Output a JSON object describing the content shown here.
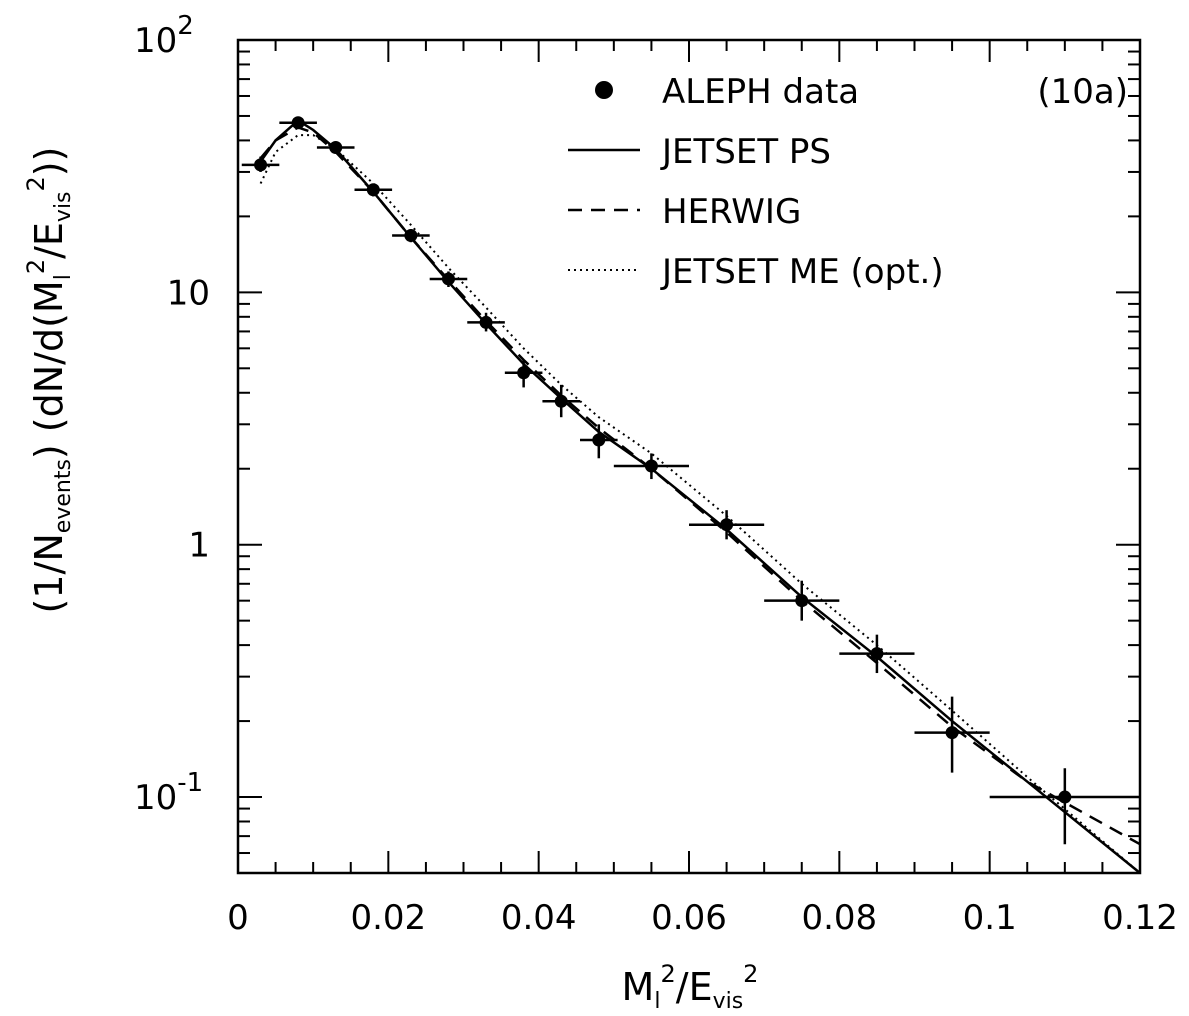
{
  "chart_data": {
    "type": "scatter",
    "title": "",
    "panel_label": "(10a)",
    "xlabel": {
      "base": "M",
      "base_sub": "l",
      "sup1": "2",
      "slash": "/",
      "base2": "E",
      "base2_sub": "vis",
      "sup2": "2"
    },
    "ylabel": {
      "part1": "(1/N",
      "part1_sub": "events",
      "part2": ") (dN/d(M",
      "part2_sub": "l",
      "part2_sup": "2",
      "part3": "/E",
      "part3_sub": "vis",
      "part3_sup": "2",
      "part4": "))"
    },
    "x_axis": {
      "min": 0,
      "max": 0.12,
      "scale": "linear",
      "ticks": [
        0,
        0.02,
        0.04,
        0.06,
        0.08,
        0.1,
        0.12
      ],
      "tick_labels": [
        "0",
        "0.02",
        "0.04",
        "0.06",
        "0.08",
        "0.1",
        "0.12"
      ]
    },
    "y_axis": {
      "min": 0.05,
      "max": 100,
      "scale": "log",
      "ticks": [
        {
          "value": 100,
          "label": "10",
          "sup": "2"
        },
        {
          "value": 10,
          "label": "10",
          "sup": ""
        },
        {
          "value": 1,
          "label": "1",
          "sup": ""
        },
        {
          "value": 0.1,
          "label": "10",
          "sup": "-1"
        }
      ]
    },
    "legend": {
      "position": "top-right",
      "entries": [
        {
          "name": "ALEPH data",
          "style": "marker"
        },
        {
          "name": "JETSET PS",
          "style": "solid"
        },
        {
          "name": "HERWIG",
          "style": "dashed"
        },
        {
          "name": "JETSET ME (opt.)",
          "style": "dotted"
        }
      ]
    },
    "series": [
      {
        "name": "ALEPH data",
        "kind": "points",
        "points": [
          {
            "x": 0.003,
            "y": 32.0,
            "xerr": 0.0025,
            "ylo": 30.0,
            "yhi": 34.5
          },
          {
            "x": 0.008,
            "y": 47.0,
            "xerr": 0.0025,
            "ylo": 45.0,
            "yhi": 49.0
          },
          {
            "x": 0.013,
            "y": 37.5,
            "xerr": 0.0025,
            "ylo": 36.0,
            "yhi": 39.0
          },
          {
            "x": 0.018,
            "y": 25.5,
            "xerr": 0.0025,
            "ylo": 24.0,
            "yhi": 27.0
          },
          {
            "x": 0.023,
            "y": 16.8,
            "xerr": 0.0025,
            "ylo": 15.8,
            "yhi": 17.8
          },
          {
            "x": 0.028,
            "y": 11.3,
            "xerr": 0.0025,
            "ylo": 10.5,
            "yhi": 12.1
          },
          {
            "x": 0.033,
            "y": 7.6,
            "xerr": 0.0025,
            "ylo": 7.0,
            "yhi": 8.3
          },
          {
            "x": 0.038,
            "y": 4.8,
            "xerr": 0.0025,
            "ylo": 4.2,
            "yhi": 5.4
          },
          {
            "x": 0.043,
            "y": 3.7,
            "xerr": 0.0025,
            "ylo": 3.2,
            "yhi": 4.3
          },
          {
            "x": 0.048,
            "y": 2.6,
            "xerr": 0.0025,
            "ylo": 2.2,
            "yhi": 3.0
          },
          {
            "x": 0.055,
            "y": 2.05,
            "xerr": 0.005,
            "ylo": 1.82,
            "yhi": 2.3
          },
          {
            "x": 0.065,
            "y": 1.2,
            "xerr": 0.005,
            "ylo": 1.05,
            "yhi": 1.37
          },
          {
            "x": 0.075,
            "y": 0.6,
            "xerr": 0.005,
            "ylo": 0.5,
            "yhi": 0.72
          },
          {
            "x": 0.085,
            "y": 0.37,
            "xerr": 0.005,
            "ylo": 0.31,
            "yhi": 0.44
          },
          {
            "x": 0.095,
            "y": 0.18,
            "xerr": 0.005,
            "ylo": 0.125,
            "yhi": 0.25
          },
          {
            "x": 0.11,
            "y": 0.1,
            "xerr": 0.01,
            "ylo": 0.065,
            "yhi": 0.13
          }
        ]
      },
      {
        "name": "JETSET PS",
        "kind": "line",
        "style": "solid",
        "points": [
          {
            "x": 0.003,
            "y": 33
          },
          {
            "x": 0.005,
            "y": 40
          },
          {
            "x": 0.008,
            "y": 48
          },
          {
            "x": 0.01,
            "y": 44
          },
          {
            "x": 0.013,
            "y": 37
          },
          {
            "x": 0.018,
            "y": 25
          },
          {
            "x": 0.023,
            "y": 16.5
          },
          {
            "x": 0.028,
            "y": 11
          },
          {
            "x": 0.033,
            "y": 7.5
          },
          {
            "x": 0.038,
            "y": 5.2
          },
          {
            "x": 0.043,
            "y": 3.8
          },
          {
            "x": 0.048,
            "y": 2.8
          },
          {
            "x": 0.055,
            "y": 2.0
          },
          {
            "x": 0.065,
            "y": 1.15
          },
          {
            "x": 0.075,
            "y": 0.62
          },
          {
            "x": 0.085,
            "y": 0.36
          },
          {
            "x": 0.095,
            "y": 0.2
          },
          {
            "x": 0.105,
            "y": 0.115
          },
          {
            "x": 0.12,
            "y": 0.05
          }
        ]
      },
      {
        "name": "HERWIG",
        "kind": "line",
        "style": "dashed",
        "points": [
          {
            "x": 0.003,
            "y": 34
          },
          {
            "x": 0.005,
            "y": 40
          },
          {
            "x": 0.008,
            "y": 45
          },
          {
            "x": 0.01,
            "y": 43
          },
          {
            "x": 0.013,
            "y": 36
          },
          {
            "x": 0.018,
            "y": 25
          },
          {
            "x": 0.023,
            "y": 16.5
          },
          {
            "x": 0.028,
            "y": 11.2
          },
          {
            "x": 0.033,
            "y": 7.7
          },
          {
            "x": 0.038,
            "y": 5.4
          },
          {
            "x": 0.043,
            "y": 3.9
          },
          {
            "x": 0.048,
            "y": 2.9
          },
          {
            "x": 0.055,
            "y": 2.0
          },
          {
            "x": 0.065,
            "y": 1.12
          },
          {
            "x": 0.075,
            "y": 0.6
          },
          {
            "x": 0.085,
            "y": 0.34
          },
          {
            "x": 0.095,
            "y": 0.19
          },
          {
            "x": 0.105,
            "y": 0.115
          },
          {
            "x": 0.12,
            "y": 0.065
          }
        ]
      },
      {
        "name": "JETSET ME (opt.)",
        "kind": "line",
        "style": "dotted",
        "points": [
          {
            "x": 0.003,
            "y": 27
          },
          {
            "x": 0.005,
            "y": 36
          },
          {
            "x": 0.008,
            "y": 42
          },
          {
            "x": 0.01,
            "y": 42
          },
          {
            "x": 0.013,
            "y": 37
          },
          {
            "x": 0.018,
            "y": 27
          },
          {
            "x": 0.023,
            "y": 18.5
          },
          {
            "x": 0.028,
            "y": 12.5
          },
          {
            "x": 0.033,
            "y": 8.7
          },
          {
            "x": 0.038,
            "y": 6.0
          },
          {
            "x": 0.043,
            "y": 4.3
          },
          {
            "x": 0.048,
            "y": 3.2
          },
          {
            "x": 0.055,
            "y": 2.3
          },
          {
            "x": 0.065,
            "y": 1.3
          },
          {
            "x": 0.075,
            "y": 0.7
          },
          {
            "x": 0.085,
            "y": 0.4
          },
          {
            "x": 0.095,
            "y": 0.22
          },
          {
            "x": 0.105,
            "y": 0.12
          },
          {
            "x": 0.12,
            "y": 0.05
          }
        ]
      }
    ]
  }
}
